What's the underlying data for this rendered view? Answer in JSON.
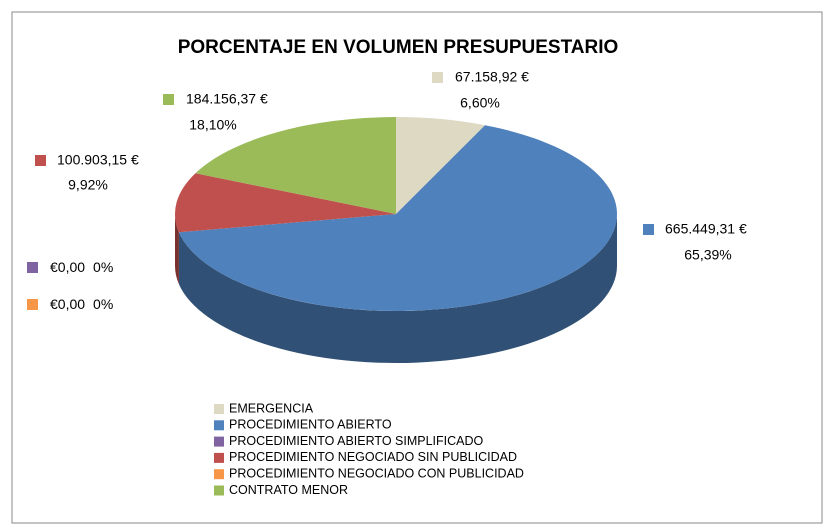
{
  "chart_data": {
    "type": "pie",
    "title": "PORCENTAJE EN VOLUMEN PRESUPUESTARIO",
    "categories": [
      "EMERGENCIA",
      "PROCEDIMIENTO ABIERTO",
      "PROCEDIMIENTO ABIERTO SIMPLIFICADO",
      "PROCEDIMIENTO NEGOCIADO SIN PUBLICIDAD",
      "PROCEDIMIENTO NEGOCIADO CON PUBLICIDAD",
      "CONTRATO MENOR"
    ],
    "values": [
      67158.92,
      665449.31,
      0,
      100903.15,
      0,
      184156.37
    ],
    "value_labels": [
      "67.158,92 €",
      "665.449,31 €",
      "€0,00",
      "100.903,15 €",
      "€0,00",
      "184.156,37 €"
    ],
    "percentages": [
      6.6,
      65.39,
      0,
      9.92,
      0,
      18.1
    ],
    "percent_labels": [
      "6,60%",
      "65,39%",
      "0%",
      "9,92%",
      "0%",
      "18,10%"
    ],
    "colors": [
      "#ddd9c3",
      "#4f81bd",
      "#8064a2",
      "#c0504d",
      "#f79646",
      "#9bbb59"
    ],
    "legend": "bottom"
  }
}
